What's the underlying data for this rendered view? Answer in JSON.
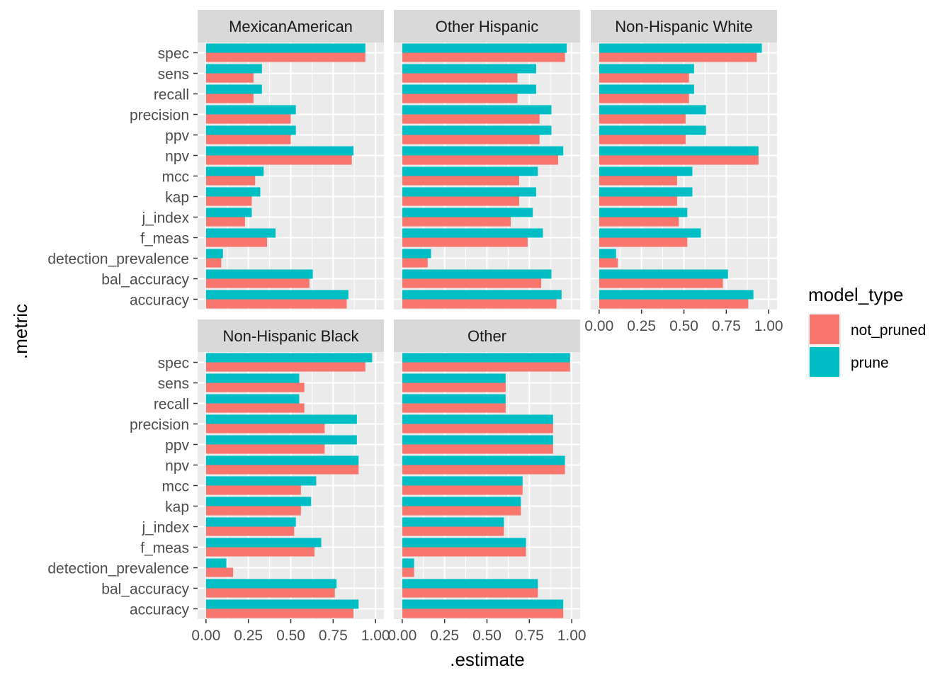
{
  "chart_data": {
    "type": "bar",
    "orientation": "horizontal",
    "facet_layout": "wrap 3 columns",
    "xlabel": ".estimate",
    "ylabel": ".metric",
    "xlim": [
      0,
      1
    ],
    "x_ticks": [
      "0.00",
      "0.25",
      "0.50",
      "0.75",
      "1.00"
    ],
    "x_tick_values": [
      0,
      0.25,
      0.5,
      0.75,
      1.0
    ],
    "grid": true,
    "categories": [
      "spec",
      "sens",
      "recall",
      "precision",
      "ppv",
      "npv",
      "mcc",
      "kap",
      "j_index",
      "f_meas",
      "detection_prevalence",
      "bal_accuracy",
      "accuracy"
    ],
    "legend": {
      "title": "model_type",
      "position": "right",
      "entries": [
        {
          "name": "not_pruned",
          "color": "#F8766D"
        },
        {
          "name": "prune",
          "color": "#00BFC4"
        }
      ]
    },
    "panels": [
      {
        "title": "MexicanAmerican",
        "series": [
          {
            "name": "prune",
            "values": [
              0.94,
              0.33,
              0.33,
              0.53,
              0.53,
              0.87,
              0.34,
              0.32,
              0.27,
              0.41,
              0.1,
              0.63,
              0.84
            ]
          },
          {
            "name": "not_pruned",
            "values": [
              0.94,
              0.28,
              0.28,
              0.5,
              0.5,
              0.86,
              0.29,
              0.27,
              0.23,
              0.36,
              0.09,
              0.61,
              0.83
            ]
          }
        ]
      },
      {
        "title": "Other Hispanic",
        "series": [
          {
            "name": "prune",
            "values": [
              0.97,
              0.79,
              0.79,
              0.88,
              0.88,
              0.95,
              0.8,
              0.79,
              0.77,
              0.83,
              0.17,
              0.88,
              0.94
            ]
          },
          {
            "name": "not_pruned",
            "values": [
              0.96,
              0.68,
              0.68,
              0.81,
              0.81,
              0.92,
              0.69,
              0.69,
              0.64,
              0.74,
              0.15,
              0.82,
              0.91
            ]
          }
        ]
      },
      {
        "title": "Non-Hispanic White",
        "series": [
          {
            "name": "prune",
            "values": [
              0.96,
              0.56,
              0.56,
              0.63,
              0.63,
              0.94,
              0.55,
              0.55,
              0.52,
              0.6,
              0.1,
              0.76,
              0.91
            ]
          },
          {
            "name": "not_pruned",
            "values": [
              0.93,
              0.53,
              0.53,
              0.51,
              0.51,
              0.94,
              0.46,
              0.46,
              0.47,
              0.52,
              0.11,
              0.73,
              0.88
            ]
          }
        ]
      },
      {
        "title": "Non-Hispanic Black",
        "series": [
          {
            "name": "prune",
            "values": [
              0.98,
              0.55,
              0.55,
              0.89,
              0.89,
              0.9,
              0.65,
              0.62,
              0.53,
              0.68,
              0.12,
              0.77,
              0.9
            ]
          },
          {
            "name": "not_pruned",
            "values": [
              0.94,
              0.58,
              0.58,
              0.7,
              0.7,
              0.9,
              0.56,
              0.56,
              0.52,
              0.64,
              0.16,
              0.76,
              0.87
            ]
          }
        ]
      },
      {
        "title": "Other",
        "series": [
          {
            "name": "prune",
            "values": [
              0.99,
              0.61,
              0.61,
              0.89,
              0.89,
              0.96,
              0.71,
              0.7,
              0.6,
              0.73,
              0.07,
              0.8,
              0.95
            ]
          },
          {
            "name": "not_pruned",
            "values": [
              0.99,
              0.61,
              0.61,
              0.89,
              0.89,
              0.96,
              0.71,
              0.7,
              0.6,
              0.73,
              0.07,
              0.8,
              0.95
            ]
          }
        ]
      }
    ]
  }
}
